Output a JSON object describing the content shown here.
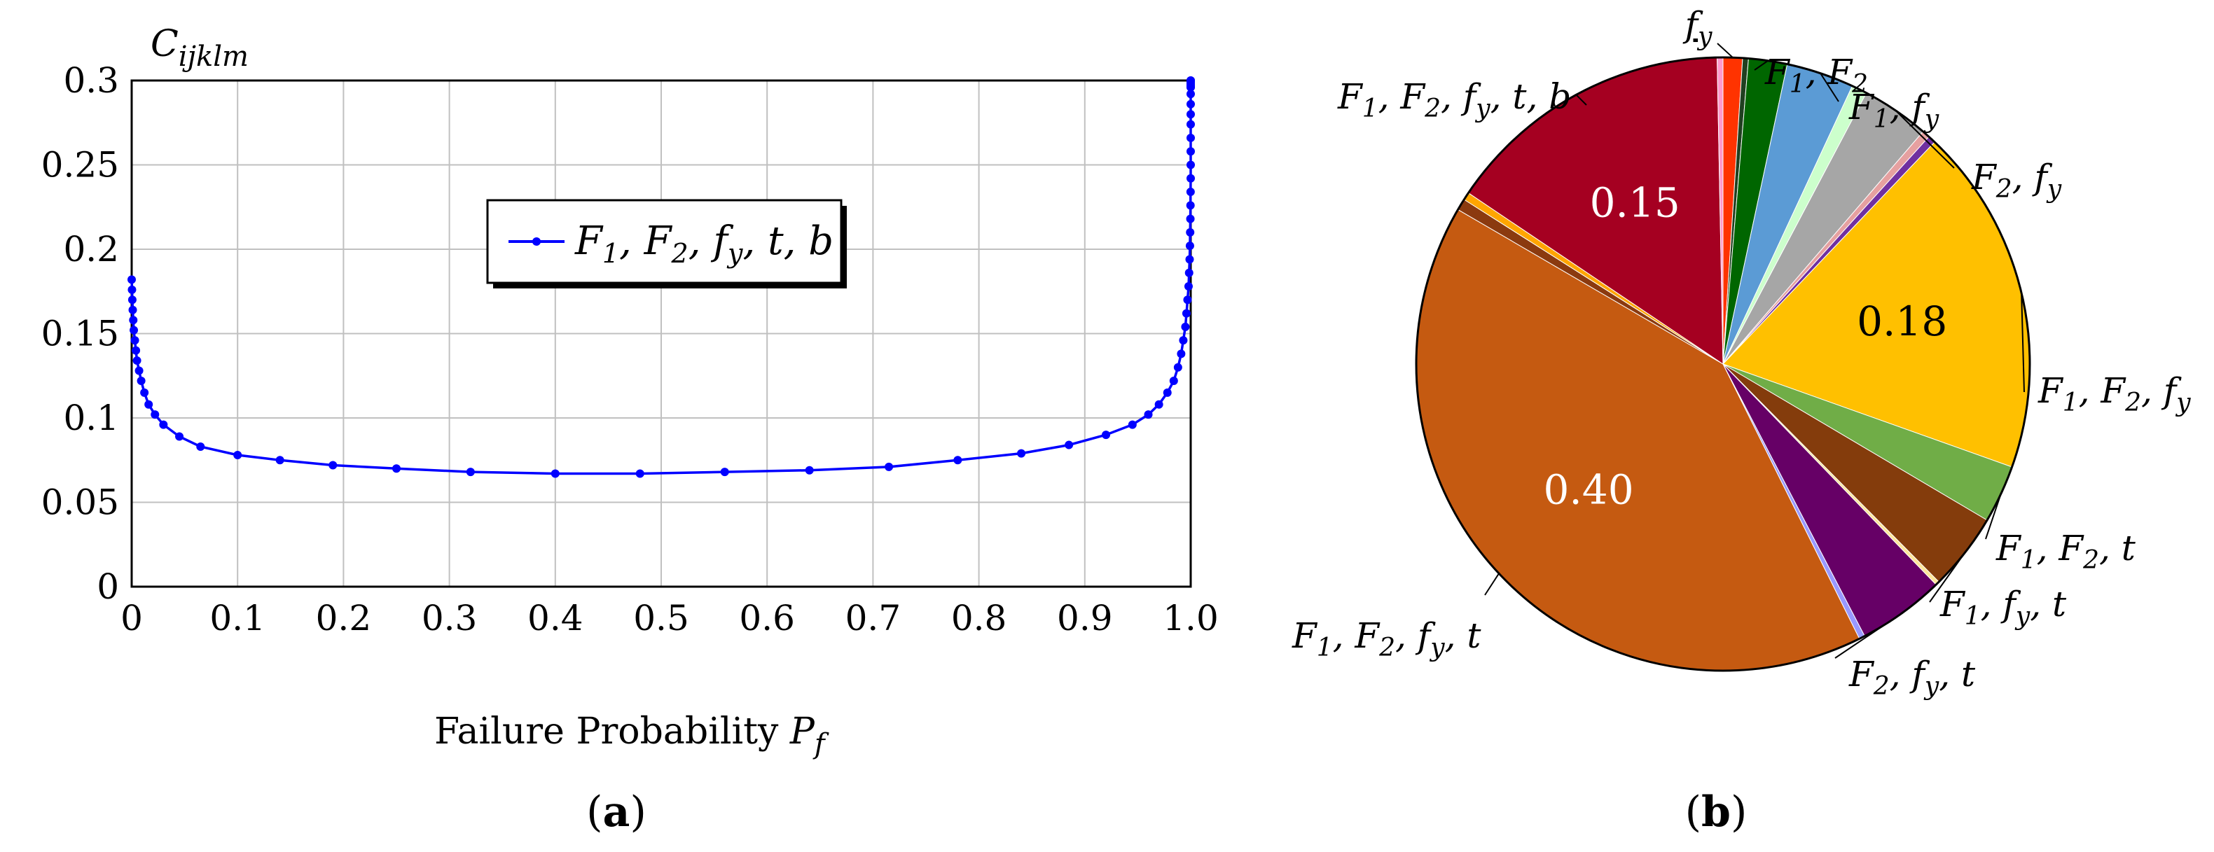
{
  "panels": {
    "a_label": "(a)",
    "b_label": "(b)"
  },
  "chart_data": [
    {
      "type": "line",
      "panel": "(a)",
      "ylabel_main": "C",
      "ylabel_sub": "ijklm",
      "xlabel_main": "Failure Probability P",
      "xlabel_sub": "f",
      "xlim": [
        0,
        1
      ],
      "ylim": [
        0,
        0.3
      ],
      "grid": true,
      "legend_position": "upper-middle",
      "x_ticks": [
        "0",
        "0.1",
        "0.2",
        "0.3",
        "0.4",
        "0.5",
        "0.6",
        "0.7",
        "0.8",
        "0.9",
        "1.0"
      ],
      "y_ticks": [
        "0",
        "0.05",
        "0.1",
        "0.15",
        "0.2",
        "0.25",
        "0.3"
      ],
      "series": [
        {
          "name": "F1, F2, fy, t, b",
          "name_rich": "F<tspan font-size=\"38\" dy=\"12\">1</tspan><tspan dy=\"-12\">, F</tspan><tspan font-size=\"38\" dy=\"12\">2</tspan><tspan dy=\"-12\">, f</tspan><tspan font-size=\"38\" dy=\"12\">y</tspan><tspan dy=\"-12\">, t, b</tspan>",
          "color": "#0000ff",
          "x": [
            0.0,
            0.0003,
            0.0006,
            0.001,
            0.0015,
            0.002,
            0.003,
            0.004,
            0.005,
            0.007,
            0.009,
            0.012,
            0.016,
            0.022,
            0.03,
            0.045,
            0.065,
            0.1,
            0.14,
            0.19,
            0.25,
            0.32,
            0.4,
            0.48,
            0.56,
            0.64,
            0.715,
            0.78,
            0.84,
            0.885,
            0.92,
            0.945,
            0.96,
            0.97,
            0.978,
            0.984,
            0.988,
            0.991,
            0.993,
            0.995,
            0.996,
            0.997,
            0.998,
            0.9985,
            0.999,
            0.9993,
            0.9995,
            0.9997,
            0.9998,
            0.9999,
            1.0,
            1.0,
            1.0,
            1.0,
            1.0,
            1.0,
            1.0,
            1.0,
            1.0,
            1.0,
            1.0,
            1.0,
            1.0,
            1.0,
            1.0
          ],
          "y": [
            0.182,
            0.176,
            0.17,
            0.164,
            0.158,
            0.152,
            0.146,
            0.14,
            0.134,
            0.128,
            0.122,
            0.115,
            0.108,
            0.102,
            0.096,
            0.089,
            0.083,
            0.078,
            0.075,
            0.072,
            0.07,
            0.068,
            0.067,
            0.067,
            0.068,
            0.069,
            0.071,
            0.075,
            0.079,
            0.084,
            0.09,
            0.096,
            0.102,
            0.108,
            0.115,
            0.122,
            0.13,
            0.138,
            0.146,
            0.154,
            0.162,
            0.17,
            0.178,
            0.186,
            0.194,
            0.202,
            0.21,
            0.218,
            0.226,
            0.234,
            0.242,
            0.25,
            0.258,
            0.266,
            0.274,
            0.28,
            0.286,
            0.292,
            0.296,
            0.3,
            0.299,
            0.298,
            0.297,
            0.296,
            0.3
          ]
        }
      ]
    },
    {
      "type": "pie",
      "panel": "(b)",
      "start_angle_deg": 0,
      "direction": "clockwise from 12 o'clock",
      "slices": [
        {
          "label": "fy",
          "label_rich": "<tspan text-decoration=\"underline\">f</tspan><tspan font-size=\"36\" dy=\"12\">y</tspan>",
          "value": 0.01,
          "color": "#ff3300"
        },
        {
          "label": "",
          "value": 0.003,
          "color": "#204020"
        },
        {
          "label": "F1, F2",
          "label_rich": "F<tspan font-size=\"36\" dy=\"12\">1</tspan><tspan dy=\"-12\">, F</tspan><tspan font-size=\"36\" dy=\"12\">2</tspan>",
          "value": 0.02,
          "color": "#006600"
        },
        {
          "label": "F1, fy",
          "label_rich": "F<tspan font-size=\"36\" dy=\"12\">1</tspan><tspan dy=\"-12\">, f</tspan><tspan font-size=\"36\" dy=\"12\">y</tspan>",
          "value": 0.035,
          "color": "#5b9bd5"
        },
        {
          "label": "",
          "value": 0.008,
          "color": "#ccffcc"
        },
        {
          "label": "F2, fy",
          "label_rich": "F<tspan font-size=\"36\" dy=\"12\">2</tspan><tspan dy=\"-12\">, f</tspan><tspan font-size=\"36\" dy=\"12\">y</tspan>",
          "value": 0.035,
          "color": "#a6a6a6"
        },
        {
          "label": "",
          "value": 0.004,
          "color": "#e6a0a0"
        },
        {
          "label": "",
          "value": 0.004,
          "color": "#7030a0"
        },
        {
          "label": "F1, F2, fy",
          "label_rich": "F<tspan font-size=\"36\" dy=\"12\">1</tspan><tspan dy=\"-12\">, F</tspan><tspan font-size=\"36\" dy=\"12\">2</tspan><tspan dy=\"-12\">, f</tspan><tspan font-size=\"36\" dy=\"12\">y</tspan>",
          "value": 0.18,
          "value_label": "0.18",
          "color": "#ffc000"
        },
        {
          "label": "F1, F2, t",
          "label_rich": "F<tspan font-size=\"36\" dy=\"12\">1</tspan><tspan dy=\"-12\">, F</tspan><tspan font-size=\"36\" dy=\"12\">2</tspan><tspan dy=\"-12\">, t</tspan>",
          "value": 0.03,
          "color": "#70ad47"
        },
        {
          "label": "F1, fy, t",
          "label_rich": "F<tspan font-size=\"36\" dy=\"12\">1</tspan><tspan dy=\"-12\">, f</tspan><tspan font-size=\"36\" dy=\"12\">y</tspan><tspan dy=\"-12\">, t</tspan>",
          "value": 0.04,
          "color": "#843c0c"
        },
        {
          "label": "",
          "value": 0.002,
          "color": "#ffe699"
        },
        {
          "label": "F2, fy, t",
          "label_rich": "F<tspan font-size=\"36\" dy=\"12\">2</tspan><tspan dy=\"-12\">, f</tspan><tspan font-size=\"36\" dy=\"12\">y</tspan><tspan dy=\"-12\">, t</tspan>",
          "value": 0.045,
          "color": "#660066"
        },
        {
          "label": "",
          "value": 0.003,
          "color": "#9999ff"
        },
        {
          "label": "F1, F2, fy, t",
          "label_rich": "F<tspan font-size=\"36\" dy=\"12\">1</tspan><tspan dy=\"-12\">, F</tspan><tspan font-size=\"36\" dy=\"12\">2</tspan><tspan dy=\"-12\">, f</tspan><tspan font-size=\"36\" dy=\"12\">y</tspan><tspan dy=\"-12\">, t</tspan>",
          "value": 0.4,
          "value_label": "0.40",
          "color": "#c55a11"
        },
        {
          "label": "",
          "value": 0.006,
          "color": "#8b3a0f"
        },
        {
          "label": "",
          "value": 0.004,
          "color": "#ffa500"
        },
        {
          "label": "F1, F2, fy, t, b",
          "label_rich": "F<tspan font-size=\"36\" dy=\"12\">1</tspan><tspan dy=\"-12\">, F</tspan><tspan font-size=\"36\" dy=\"12\">2</tspan><tspan dy=\"-12\">, f</tspan><tspan font-size=\"36\" dy=\"12\">y</tspan><tspan dy=\"-12\">, t, b</tspan>",
          "value": 0.15,
          "value_label": "0.15",
          "color": "#a50021"
        },
        {
          "label": "",
          "value": 0.003,
          "color": "#ff99cc"
        }
      ]
    }
  ]
}
